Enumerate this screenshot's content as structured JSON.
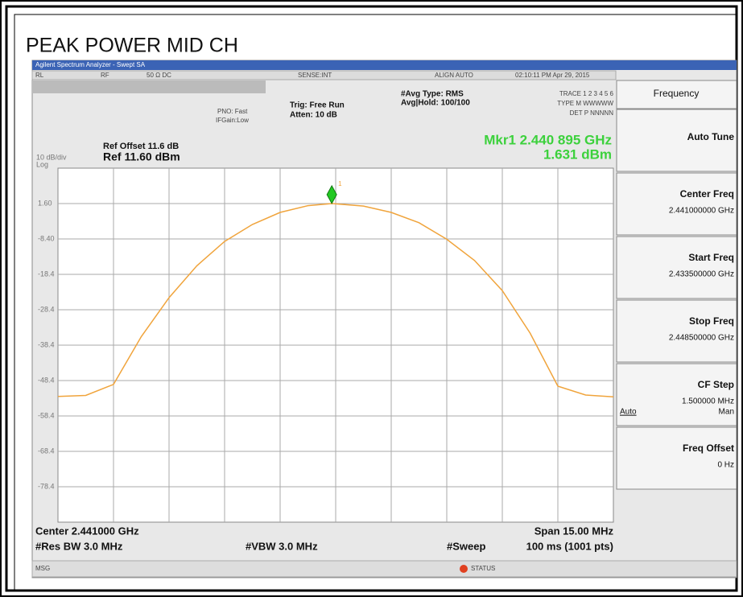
{
  "page_title": "PEAK POWER MID CH",
  "window_title": "Agilent Spectrum Analyzer - Swept SA",
  "status_bar": {
    "rl": "RL",
    "rf": "RF",
    "coupling": "50 Ω DC",
    "sense": "SENSE:INT",
    "align": "ALIGN AUTO",
    "time": "02:10:11 PM Apr 29, 2015"
  },
  "settings": {
    "pno": "PNO: Fast",
    "if_gain": "IFGain:Low",
    "trig": "Trig: Free Run",
    "atten": "Atten: 10 dB",
    "avg_type": "#Avg Type: RMS",
    "avg_hold": "Avg|Hold: 100/100",
    "trace": "TRACE 1 2 3 4 5 6",
    "type": "TYPE M WWWWW",
    "det": "DET P NNNNN"
  },
  "ref_offset": "Ref Offset 11.6 dB",
  "scale": "10 dB/div",
  "scale_type": "Log",
  "ref_level": "Ref 11.60 dBm",
  "marker": {
    "label": "Mkr1 2.440 895 GHz",
    "value_label": "1.631 dBm",
    "id": "1",
    "x": 2440.895,
    "value": 1.631
  },
  "footer": {
    "center": "Center 2.441000 GHz",
    "span": "Span 15.00 MHz",
    "res_bw": "#Res BW 3.0 MHz",
    "vbw": "#VBW 3.0 MHz",
    "sweep": "#Sweep",
    "sweep_time": "100 ms (1001 pts)",
    "msg": "MSG",
    "status": "STATUS"
  },
  "chart_data": {
    "type": "line",
    "xlim": [
      2433.5,
      2448.5
    ],
    "ylim": [
      -88.4,
      11.6
    ],
    "yticks": [
      {
        "value": 1.6,
        "label": "1.60"
      },
      {
        "value": -8.4,
        "label": "-8.40"
      },
      {
        "value": -18.4,
        "label": "-18.4"
      },
      {
        "value": -28.4,
        "label": "-28.4"
      },
      {
        "value": -38.4,
        "label": "-38.4"
      },
      {
        "value": -48.4,
        "label": "-48.4"
      },
      {
        "value": -58.4,
        "label": "-58.4"
      },
      {
        "value": -68.4,
        "label": "-68.4"
      },
      {
        "value": -78.4,
        "label": "-78.4"
      }
    ],
    "color": "#f0a43c",
    "x": [
      2433.5,
      2434.25,
      2435.0,
      2435.75,
      2436.5,
      2437.25,
      2438.0,
      2438.75,
      2439.5,
      2440.25,
      2440.9,
      2441.75,
      2442.5,
      2443.25,
      2444.0,
      2444.75,
      2445.5,
      2446.25,
      2447.0,
      2447.75,
      2448.5
    ],
    "values": [
      -52.9,
      -52.6,
      -49.5,
      -36,
      -25,
      -16,
      -9.1,
      -4.3,
      -0.9,
      1.0,
      1.6,
      0.9,
      -0.9,
      -3.8,
      -8.5,
      -14.5,
      -23,
      -35,
      -50,
      -52.5,
      -53
    ]
  },
  "menu": {
    "header": "Frequency",
    "buttons": [
      {
        "label": "Auto Tune"
      },
      {
        "label": "Center Freq",
        "value": "2.441000000 GHz"
      },
      {
        "label": "Start Freq",
        "value": "2.433500000 GHz"
      },
      {
        "label": "Stop Freq",
        "value": "2.448500000 GHz"
      },
      {
        "label": "CF Step",
        "value": "1.500000 MHz",
        "left": "Auto",
        "right": "Man"
      },
      {
        "label": "Freq Offset",
        "value": "0 Hz"
      }
    ]
  }
}
